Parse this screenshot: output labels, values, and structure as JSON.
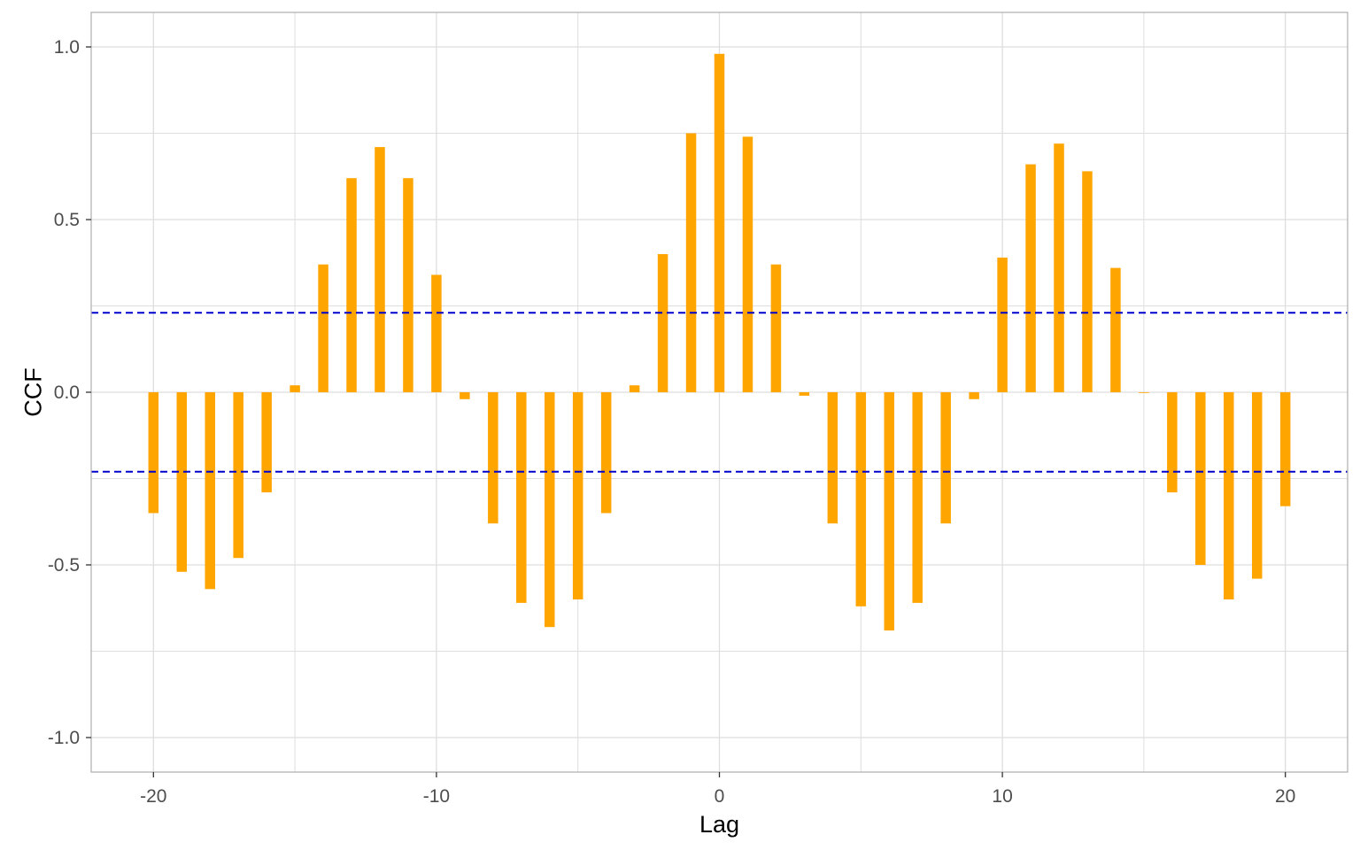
{
  "chart_data": {
    "type": "bar",
    "title": "",
    "xlabel": "Lag",
    "ylabel": "CCF",
    "xlim": [
      -22.2,
      22.2
    ],
    "ylim": [
      -1.1,
      1.1
    ],
    "x_ticks": [
      -20,
      -10,
      0,
      10,
      20
    ],
    "x_tick_labels": [
      "-20",
      "-10",
      "0",
      "10",
      "20"
    ],
    "y_ticks": [
      -1.0,
      -0.5,
      0.0,
      0.5,
      1.0
    ],
    "y_tick_labels": [
      "-1.0",
      "-0.5",
      "0.0",
      "0.5",
      "1.0"
    ],
    "grid": true,
    "x": [
      -20,
      -19,
      -18,
      -17,
      -16,
      -15,
      -14,
      -13,
      -12,
      -11,
      -10,
      -9,
      -8,
      -7,
      -6,
      -5,
      -4,
      -3,
      -2,
      -1,
      0,
      1,
      2,
      3,
      4,
      5,
      6,
      7,
      8,
      9,
      10,
      11,
      12,
      13,
      14,
      15,
      16,
      17,
      18,
      19,
      20
    ],
    "values": [
      -0.35,
      -0.52,
      -0.57,
      -0.48,
      -0.29,
      0.02,
      0.37,
      0.62,
      0.71,
      0.62,
      0.34,
      -0.02,
      -0.38,
      -0.61,
      -0.68,
      -0.6,
      -0.35,
      0.02,
      0.4,
      0.75,
      0.98,
      0.74,
      0.37,
      -0.01,
      -0.38,
      -0.62,
      -0.69,
      -0.61,
      -0.38,
      -0.02,
      0.39,
      0.66,
      0.72,
      0.64,
      0.36,
      0.0,
      -0.29,
      -0.5,
      -0.6,
      -0.54,
      -0.33
    ],
    "confidence_bounds": [
      0.23,
      -0.23
    ],
    "colors": {
      "bars": "#FFA500",
      "bounds": "#0000CD",
      "grid": "#DEDEDE",
      "panel_border": "#B3B3B3"
    }
  }
}
